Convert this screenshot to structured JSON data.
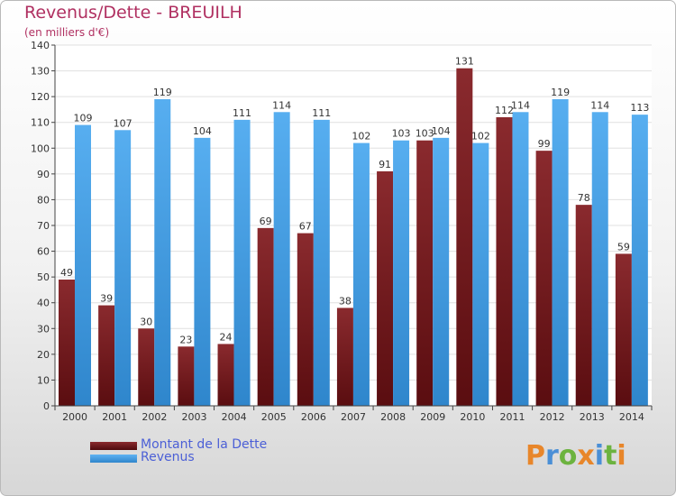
{
  "header": {
    "title": "Revenus/Dette - BREUILH",
    "subtitle": "(en milliers d'€)"
  },
  "legend": {
    "debt_label": "Montant de la Dette",
    "revenue_label": "Revenus"
  },
  "logo": {
    "text": "Proxiti"
  },
  "colors": {
    "debt": "#7a1f22",
    "revenue": "#4aa3e8",
    "axis_text": "#333333",
    "label_text": "#333333",
    "title": "#b03061",
    "legend_text": "#4b5fd6"
  },
  "chart_data": {
    "type": "bar",
    "title": "Revenus/Dette - BREUILH",
    "subtitle": "(en milliers d'€)",
    "xlabel": "",
    "ylabel": "",
    "ylim": [
      0,
      140
    ],
    "yticks": [
      0,
      10,
      20,
      30,
      40,
      50,
      60,
      70,
      80,
      90,
      100,
      110,
      120,
      130,
      140
    ],
    "grid": true,
    "legend_position": "bottom-left",
    "categories": [
      "2000",
      "2001",
      "2002",
      "2003",
      "2004",
      "2005",
      "2006",
      "2007",
      "2008",
      "2009",
      "2010",
      "2011",
      "2012",
      "2013",
      "2014"
    ],
    "series": [
      {
        "name": "Montant de la Dette",
        "values": [
          49,
          39,
          30,
          23,
          24,
          69,
          67,
          38,
          91,
          103,
          131,
          112,
          99,
          78,
          59
        ]
      },
      {
        "name": "Revenus",
        "values": [
          109,
          107,
          119,
          104,
          111,
          114,
          111,
          102,
          103,
          104,
          102,
          114,
          119,
          114,
          113
        ]
      }
    ]
  }
}
